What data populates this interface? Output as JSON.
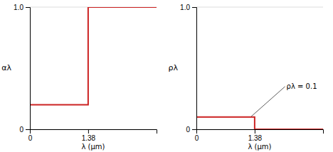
{
  "chart_data": [
    {
      "type": "line",
      "xlabel": "λ (μm)",
      "ylabel": "αλ",
      "x": [
        0,
        1.38,
        1.38,
        3.0
      ],
      "values": [
        0.2,
        0.2,
        1.0,
        1.0
      ],
      "color": "#cc2222",
      "xlim": [
        0,
        3.0
      ],
      "ylim": [
        0,
        1.0
      ],
      "xticks": [
        0,
        1.38
      ],
      "yticks": [
        0,
        {
          "value": 1.0,
          "label": "1.0"
        }
      ],
      "grid": true
    },
    {
      "type": "line",
      "xlabel": "λ (μm)",
      "ylabel": "ρλ",
      "x": [
        0,
        1.38,
        1.38,
        3.0
      ],
      "values": [
        0.1,
        0.1,
        0.0,
        0.0
      ],
      "color": "#cc2222",
      "xlim": [
        0,
        3.0
      ],
      "ylim": [
        0,
        1.0
      ],
      "xticks": [
        0,
        1.38
      ],
      "yticks": [
        0,
        {
          "value": 1.0,
          "label": "1.0"
        }
      ],
      "grid": true,
      "annotations": [
        {
          "text": "ρλ = 0.1",
          "x": 2.1,
          "y": 0.35,
          "arrow_x": 1.3,
          "arrow_y": 0.105
        }
      ]
    }
  ]
}
